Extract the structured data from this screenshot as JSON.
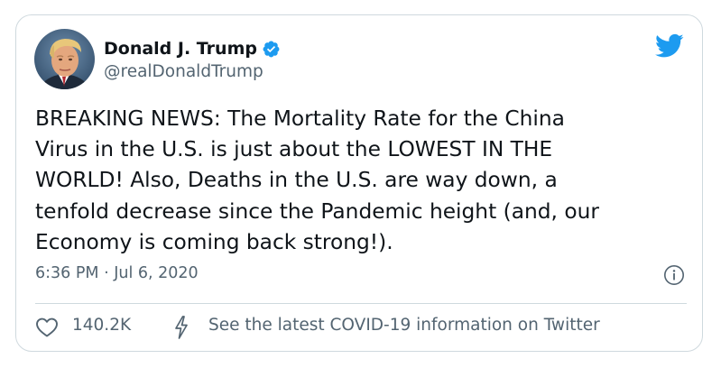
{
  "tweet": {
    "author": {
      "display_name": "Donald J. Trump",
      "handle": "@realDonaldTrump",
      "verified": true,
      "avatar_icon": "profile-photo"
    },
    "text": "BREAKING NEWS: The Mortality Rate for the China\nVirus in the U.S. is just about the LOWEST IN THE\nWORLD! Also, Deaths in the U.S. are way down, a\ntenfold decrease since the Pandemic height (and, our\nEconomy is coming back strong!).",
    "timestamp": "6:36 PM · Jul 6, 2020",
    "likes": "140.2K",
    "covid_notice": "See the latest COVID-19 information on Twitter"
  },
  "icons": {
    "brand": "twitter-bird-icon",
    "verified": "verified-badge-icon",
    "info": "info-icon",
    "like": "heart-icon",
    "notice": "bolt-icon"
  },
  "colors": {
    "twitter_blue": "#1d9bf0",
    "text_primary": "#0f1419",
    "text_secondary": "#536471",
    "border": "#cfd9de"
  }
}
